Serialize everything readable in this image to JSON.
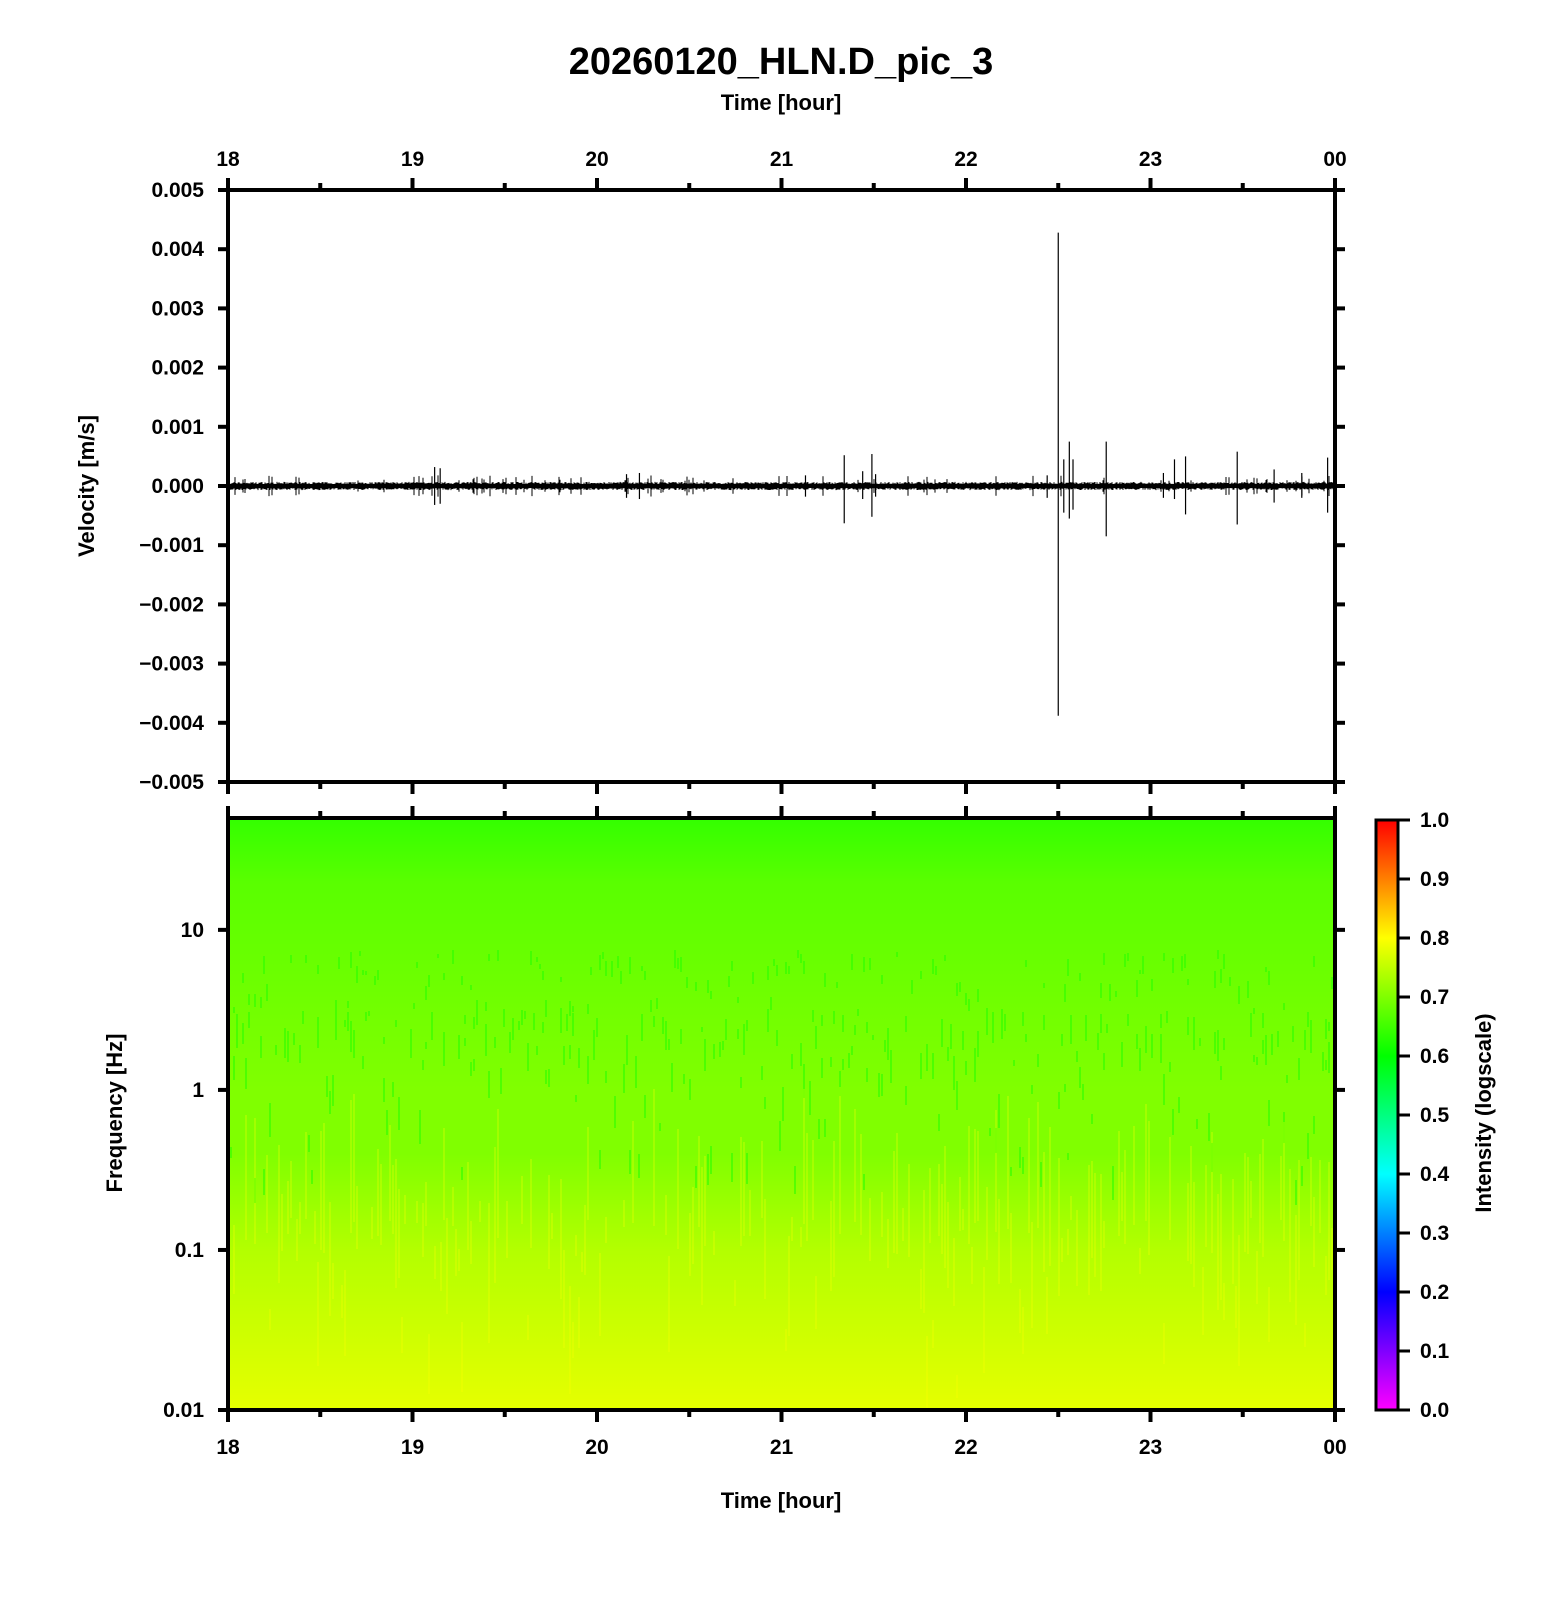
{
  "chart_data": [
    {
      "type": "line",
      "title": "20260120_HLN.D_pic_3",
      "xlabel": "Time [hour]",
      "ylabel": "Velocity [m/s]",
      "x_ticks": [
        "18",
        "19",
        "20",
        "21",
        "22",
        "23",
        "00"
      ],
      "xlim": [
        18,
        24
      ],
      "ylim": [
        -0.005,
        0.005
      ],
      "y_ticks": [
        "0.005",
        "0.004",
        "0.003",
        "0.002",
        "0.001",
        "0.000",
        "−0.001",
        "−0.002",
        "−0.003",
        "−0.004",
        "−0.005"
      ],
      "grid": false,
      "series": [
        {
          "color": "#000000",
          "background_noise_amplitude": 6e-05,
          "spikes": [
            {
              "t": 19.12,
              "max": 0.00032,
              "min": -0.00032
            },
            {
              "t": 19.15,
              "max": 0.0003,
              "min": -0.0003
            },
            {
              "t": 20.16,
              "max": 0.0002,
              "min": -0.0002
            },
            {
              "t": 20.23,
              "max": 0.00022,
              "min": -0.00022
            },
            {
              "t": 21.13,
              "max": 0.00018,
              "min": -0.00018
            },
            {
              "t": 21.34,
              "max": 0.00052,
              "min": -0.00063
            },
            {
              "t": 21.44,
              "max": 0.00025,
              "min": -0.00022
            },
            {
              "t": 21.49,
              "max": 0.00054,
              "min": -0.00052
            },
            {
              "t": 21.51,
              "max": 0.0002,
              "min": -0.00018
            },
            {
              "t": 22.44,
              "max": 0.00018,
              "min": -0.0002
            },
            {
              "t": 22.5,
              "max": 0.00428,
              "min": -0.00388
            },
            {
              "t": 22.53,
              "max": 0.00045,
              "min": -0.00045
            },
            {
              "t": 22.56,
              "max": 0.00075,
              "min": -0.00055
            },
            {
              "t": 22.58,
              "max": 0.00045,
              "min": -0.0004
            },
            {
              "t": 22.76,
              "max": 0.00075,
              "min": -0.00085
            },
            {
              "t": 23.07,
              "max": 0.00022,
              "min": -0.0002
            },
            {
              "t": 23.13,
              "max": 0.00045,
              "min": -0.00022
            },
            {
              "t": 23.19,
              "max": 0.0005,
              "min": -0.00048
            },
            {
              "t": 23.47,
              "max": 0.00058,
              "min": -0.00065
            },
            {
              "t": 23.67,
              "max": 0.00028,
              "min": -0.00028
            },
            {
              "t": 23.82,
              "max": 0.00022,
              "min": -0.0002
            },
            {
              "t": 23.96,
              "max": 0.00048,
              "min": -0.00045
            }
          ]
        }
      ]
    },
    {
      "type": "heatmap",
      "xlabel": "Time [hour]",
      "ylabel": "Frequency [Hz]",
      "x_ticks": [
        "18",
        "19",
        "20",
        "21",
        "22",
        "23",
        "00"
      ],
      "xlim": [
        18,
        24
      ],
      "y_scale": "log",
      "ylim": [
        0.01,
        50
      ],
      "y_ticks": [
        "10",
        "1",
        "0.1",
        "0.01"
      ],
      "y_tick_values": [
        10,
        1,
        0.1,
        0.01
      ],
      "colorbar": {
        "label": "Intensity (logscale)",
        "ticks": [
          "1.0",
          "0.9",
          "0.8",
          "0.7",
          "0.6",
          "0.5",
          "0.4",
          "0.3",
          "0.2",
          "0.1",
          "0.0"
        ],
        "range": [
          0.0,
          1.0
        ],
        "colormap_stops": [
          "#ff00ff",
          "#0000ff",
          "#00ffff",
          "#00ff00",
          "#ffff00",
          "#ff0000"
        ]
      },
      "intensity_profile": [
        {
          "freq": 50,
          "intensity": 0.64
        },
        {
          "freq": 20,
          "intensity": 0.67
        },
        {
          "freq": 5,
          "intensity": 0.685
        },
        {
          "freq": 1,
          "intensity": 0.7
        },
        {
          "freq": 0.4,
          "intensity": 0.7
        },
        {
          "freq": 0.1,
          "intensity": 0.74
        },
        {
          "freq": 0.01,
          "intensity": 0.78
        }
      ]
    }
  ]
}
